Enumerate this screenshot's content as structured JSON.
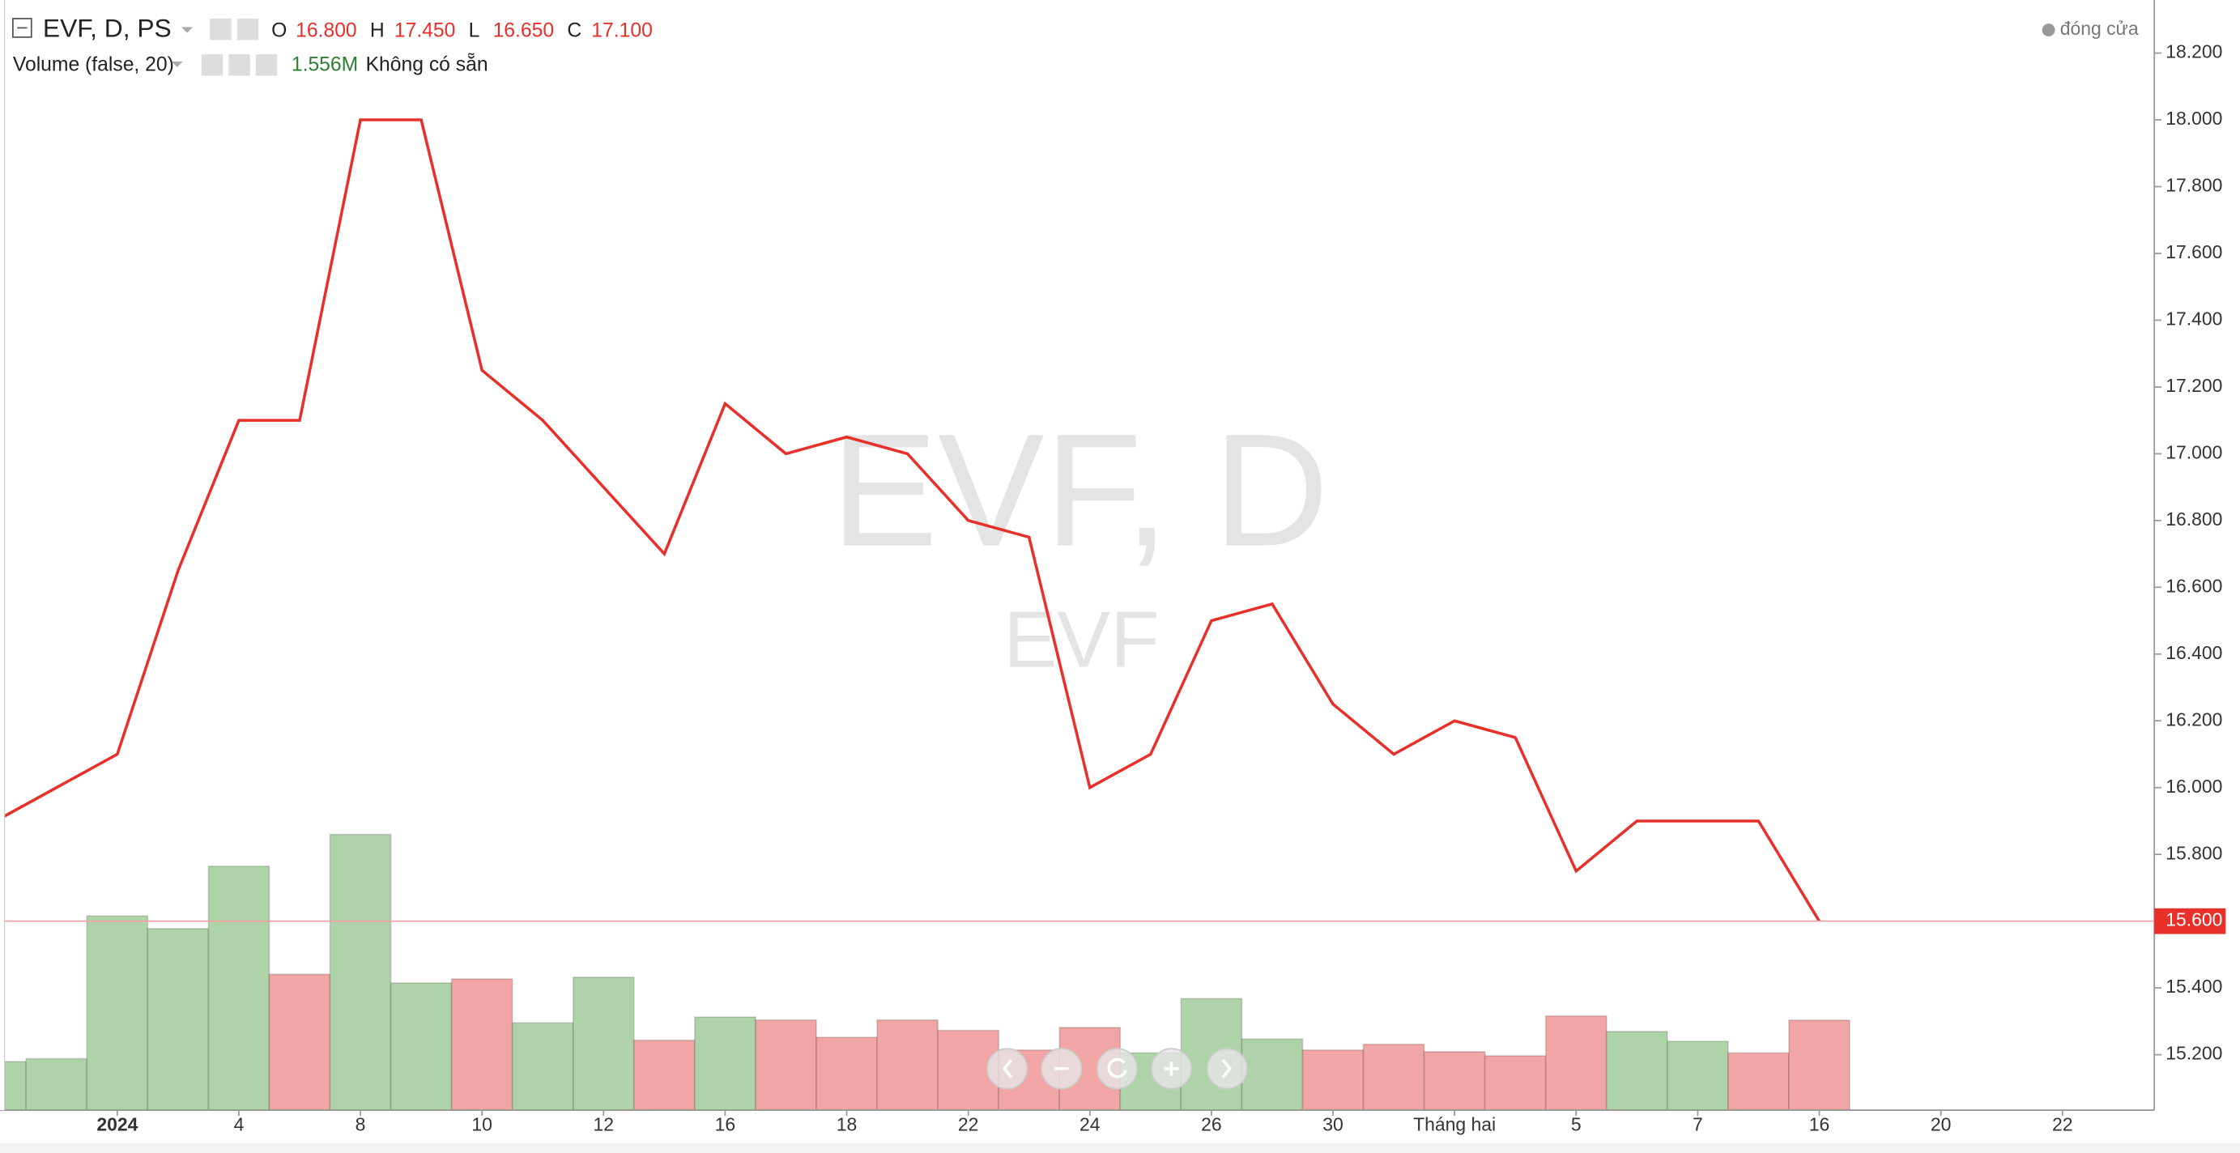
{
  "chart_data": {
    "type": "line",
    "title": "EVF, D, PS",
    "ohlc": [
      [
        "O",
        "16.800"
      ],
      [
        "H",
        "17.450"
      ],
      [
        "L",
        "16.650"
      ],
      [
        "C",
        "17.100"
      ]
    ],
    "volume_title": "Volume (false, 20)",
    "volume_last": "1.556M",
    "volume_status": "Không có sẵn",
    "watermark": "EVF, D",
    "watermark_sub": "EVF",
    "legend_position": "top-right",
    "categories": [
      null,
      null,
      "2024",
      null,
      "4",
      null,
      "8",
      null,
      "10",
      null,
      "12",
      null,
      "16",
      null,
      "18",
      null,
      "22",
      null,
      "24",
      null,
      "26",
      null,
      "30",
      null,
      "Tháng hai",
      null,
      "5",
      null,
      "7",
      null,
      "16",
      null,
      "20",
      null,
      "22"
    ],
    "series": [
      {
        "name": "đóng cửa",
        "type": "line",
        "color": "#e8302a",
        "values": [
          15.9,
          16.0,
          16.1,
          16.65,
          17.1,
          17.1,
          18.0,
          18.0,
          17.25,
          17.1,
          16.9,
          16.7,
          17.15,
          17.0,
          17.05,
          17.0,
          16.8,
          16.75,
          16.0,
          16.1,
          16.5,
          16.55,
          16.25,
          16.1,
          16.2,
          16.15,
          15.75,
          15.9,
          15.9,
          15.9,
          15.6,
          null,
          null,
          null,
          null
        ]
      },
      {
        "name": "Volume (false, 20)",
        "type": "bar",
        "colors": [
          "#afd3a8",
          "#afd3a8",
          "#afd3a8",
          "#afd3a8",
          "#afd3a8",
          "#f2a5a5",
          "#afd3a8",
          "#afd3a8",
          "#f2a5a5",
          "#afd3a8",
          "#afd3a8",
          "#f2a5a5",
          "#afd3a8",
          "#f2a5a5",
          "#f2a5a5",
          "#f2a5a5",
          "#f2a5a5",
          "#f2a5a5",
          "#f2a5a5",
          "#afd3a8",
          "#afd3a8",
          "#afd3a8",
          "#f2a5a5",
          "#f2a5a5",
          "#f2a5a5",
          "#f2a5a5",
          "#f2a5a5",
          "#afd3a8",
          "#afd3a8",
          "#f2a5a5",
          "#f2a5a5",
          null,
          null,
          null,
          null
        ],
        "values": [
          0.84,
          0.89,
          3.36,
          3.14,
          4.22,
          2.35,
          4.77,
          2.2,
          2.27,
          1.51,
          2.3,
          1.21,
          1.61,
          1.56,
          1.26,
          1.56,
          1.38,
          1.04,
          1.43,
          0.99,
          1.93,
          1.23,
          1.04,
          1.14,
          1.01,
          0.94,
          1.63,
          1.36,
          1.19,
          0.99,
          1.556,
          null,
          null,
          null,
          null
        ]
      }
    ],
    "last_price": {
      "value": 15.6,
      "label": "15.600"
    },
    "ylim": [
      15.034,
      18.359
    ],
    "yticks": [
      {
        "value": 15.2,
        "label": "15.200"
      },
      {
        "value": 15.4,
        "label": "15.400"
      },
      {
        "value": 15.6,
        "label": "15.600"
      },
      {
        "value": 15.8,
        "label": "15.800"
      },
      {
        "value": 16.0,
        "label": "16.000"
      },
      {
        "value": 16.2,
        "label": "16.200"
      },
      {
        "value": 16.4,
        "label": "16.400"
      },
      {
        "value": 16.6,
        "label": "16.600"
      },
      {
        "value": 16.8,
        "label": "16.800"
      },
      {
        "value": 17.0,
        "label": "17.000"
      },
      {
        "value": 17.2,
        "label": "17.200"
      },
      {
        "value": 17.4,
        "label": "17.400"
      },
      {
        "value": 17.6,
        "label": "17.600"
      },
      {
        "value": 17.8,
        "label": "17.800"
      },
      {
        "value": 18.0,
        "label": "18.000"
      },
      {
        "value": 18.2,
        "label": "18.200"
      }
    ],
    "grid": false
  }
}
